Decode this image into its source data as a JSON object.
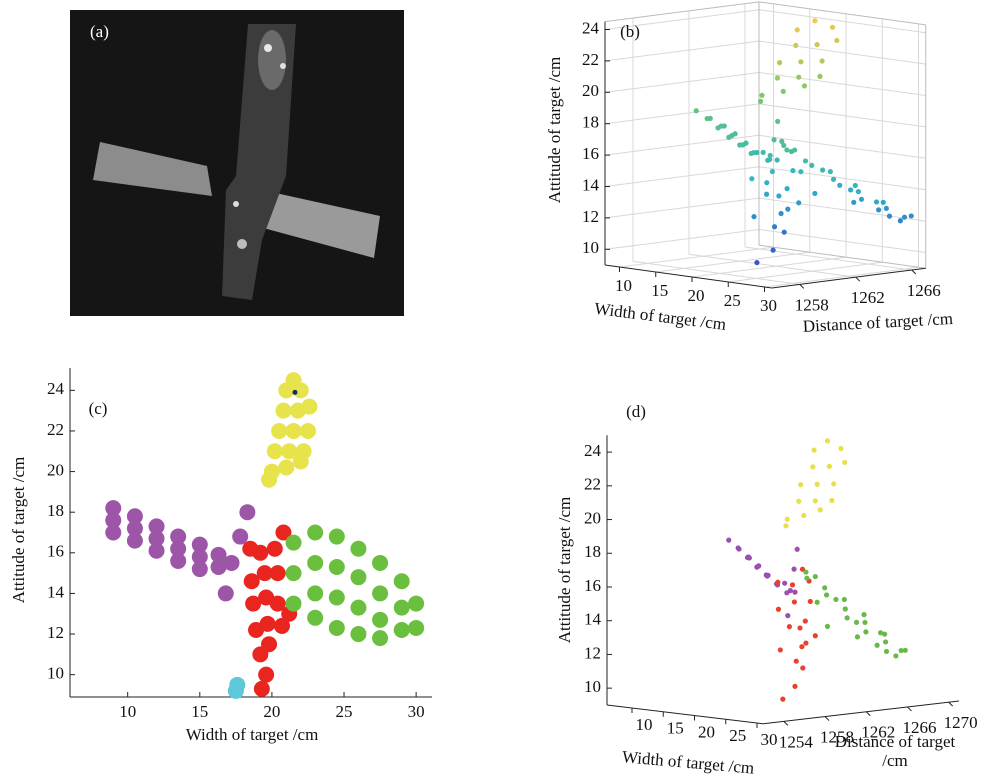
{
  "image": {
    "panel_label": "(a)"
  },
  "chart_data": [
    {
      "type": "scatter3d",
      "panel_label": "(b)",
      "xlabel": "Width of target /cm",
      "zlabel": "Distance of target /cm",
      "ylabel": "Attitude of target /cm",
      "xlim": [
        8,
        31
      ],
      "xticks": [
        10,
        15,
        20,
        25,
        30
      ],
      "zlim": [
        1256,
        1267
      ],
      "zticks": [
        1258,
        1262,
        1266
      ],
      "ylim": [
        9,
        24.5
      ],
      "yticks": [
        10,
        12,
        14,
        16,
        18,
        20,
        22,
        24
      ],
      "grid": true,
      "colormap": [
        "#3a4fc8",
        "#2fb3c8",
        "#6cc96a",
        "#f2c94c"
      ],
      "series": [
        {
          "x": [
            21.5,
            21,
            22,
            20.8,
            21.8,
            22.6,
            20.5,
            21.5,
            22.5,
            20.2,
            21.2,
            22.2,
            20,
            21,
            22,
            19.8
          ],
          "y": [
            24.5,
            24,
            24,
            23,
            23,
            23.2,
            22,
            22,
            22,
            21,
            21,
            21,
            20,
            20.2,
            20.5,
            19.6
          ],
          "z": [
            1264,
            1263,
            1265,
            1263,
            1264,
            1265,
            1262,
            1263,
            1264,
            1262,
            1263,
            1264,
            1261,
            1262,
            1263,
            1261
          ]
        },
        {
          "x": [
            9,
            9,
            9,
            10.5,
            10.5,
            10.5,
            12,
            12,
            12,
            13.5,
            13.5,
            13.5,
            15,
            15,
            15,
            16.3,
            16.3,
            17.2,
            17.8,
            18.3,
            16.8
          ],
          "y": [
            18.2,
            17.6,
            17,
            17.8,
            17.2,
            16.6,
            17.3,
            16.7,
            16.1,
            16.8,
            16.2,
            15.6,
            16.4,
            15.8,
            15.2,
            15.9,
            15.3,
            15.5,
            16.8,
            18,
            14
          ],
          "z": [
            1262,
            1263,
            1264,
            1262,
            1263,
            1264,
            1262,
            1263,
            1264,
            1262,
            1263,
            1264,
            1262,
            1263,
            1264,
            1263,
            1264,
            1263,
            1263,
            1263,
            1263
          ]
        },
        {
          "x": [
            19.3,
            19.6,
            19.2,
            19.8,
            18.9,
            19.7,
            18.7,
            19.6,
            20.4,
            18.6,
            19.5,
            20.4,
            19.2,
            20.2,
            20.8,
            21.2,
            18.5,
            20.7
          ],
          "y": [
            9.3,
            10,
            11,
            11.5,
            12.2,
            12.5,
            13.5,
            13.8,
            13.5,
            14.6,
            15,
            15,
            16,
            16.2,
            17,
            13,
            16.2,
            12.4
          ],
          "z": [
            1261,
            1262,
            1263,
            1262,
            1261,
            1263,
            1262,
            1263,
            1262,
            1261,
            1262,
            1263,
            1262,
            1263,
            1262,
            1263,
            1261,
            1262
          ]
        },
        {
          "x": [
            21.5,
            21.5,
            21.5,
            23,
            23,
            23,
            23,
            24.5,
            24.5,
            24.5,
            24.5,
            26,
            26,
            26,
            26,
            27.5,
            27.5,
            27.5,
            27.5,
            29,
            29,
            29,
            30,
            30
          ],
          "y": [
            16.5,
            15,
            13.5,
            17,
            15.5,
            14,
            12.8,
            16.8,
            15.3,
            13.8,
            12.3,
            16.2,
            14.8,
            13.3,
            12,
            15.5,
            14,
            12.7,
            11.8,
            14.6,
            13.3,
            12.2,
            13.5,
            12.3
          ],
          "z": [
            1262,
            1263,
            1264,
            1261,
            1263,
            1265,
            1266,
            1261,
            1263,
            1265,
            1267,
            1261,
            1263,
            1265,
            1267,
            1262,
            1264,
            1266,
            1267,
            1263,
            1265,
            1267,
            1264,
            1266
          ]
        }
      ]
    },
    {
      "type": "scatter",
      "panel_label": "(c)",
      "xlabel": "Width of target /cm",
      "ylabel": "Attitude of target /cm",
      "xlim": [
        6,
        31.1
      ],
      "xticks": [
        10,
        15,
        20,
        25,
        30
      ],
      "ylim": [
        8.9,
        25.1
      ],
      "yticks": [
        10,
        12,
        14,
        16,
        18,
        20,
        22,
        24
      ],
      "series": [
        {
          "color": "#e6e44a",
          "x": [
            21.5,
            21,
            22,
            20.8,
            21.8,
            22.6,
            20.5,
            21.5,
            22.5,
            20.2,
            21.2,
            22.2,
            20,
            21,
            22,
            19.8
          ],
          "y": [
            24.5,
            24,
            24,
            23,
            23,
            23.2,
            22,
            22,
            22,
            21,
            21,
            21,
            20,
            20.2,
            20.5,
            19.6
          ]
        },
        {
          "color": "#9d55a8",
          "x": [
            9,
            9,
            9,
            10.5,
            10.5,
            10.5,
            12,
            12,
            12,
            13.5,
            13.5,
            13.5,
            15,
            15,
            15,
            16.3,
            16.3,
            17.2,
            17.8,
            18.3,
            16.8
          ],
          "y": [
            18.2,
            17.6,
            17,
            17.8,
            17.2,
            16.6,
            17.3,
            16.7,
            16.1,
            16.8,
            16.2,
            15.6,
            16.4,
            15.8,
            15.2,
            15.9,
            15.3,
            15.5,
            16.8,
            18,
            14
          ]
        },
        {
          "color": "#e8251f",
          "x": [
            19.3,
            19.6,
            19.2,
            19.8,
            18.9,
            19.7,
            18.7,
            19.6,
            20.4,
            18.6,
            19.5,
            20.4,
            19.2,
            20.2,
            20.8,
            21.2,
            18.5,
            20.7
          ],
          "y": [
            9.3,
            10,
            11,
            11.5,
            12.2,
            12.5,
            13.5,
            13.8,
            13.5,
            14.6,
            15,
            15,
            16,
            16.2,
            17,
            13,
            16.2,
            12.4
          ]
        },
        {
          "color": "#6bbf3f",
          "x": [
            21.5,
            21.5,
            21.5,
            23,
            23,
            23,
            23,
            24.5,
            24.5,
            24.5,
            24.5,
            26,
            26,
            26,
            26,
            27.5,
            27.5,
            27.5,
            27.5,
            29,
            29,
            29,
            30,
            30
          ],
          "y": [
            16.5,
            15,
            13.5,
            17,
            15.5,
            14,
            12.8,
            16.8,
            15.3,
            13.8,
            12.3,
            16.2,
            14.8,
            13.3,
            12,
            15.5,
            14,
            12.7,
            11.8,
            14.6,
            13.3,
            12.2,
            13.5,
            12.3
          ]
        },
        {
          "color": "#5ec8d8",
          "x": [
            17.5,
            17.6
          ],
          "y": [
            9.2,
            9.5
          ]
        },
        {
          "color": "#1b2a6b",
          "x": [
            21.6
          ],
          "y": [
            23.9
          ]
        }
      ]
    },
    {
      "type": "scatter3d",
      "panel_label": "(d)",
      "xlabel": "Width of target /cm",
      "zlabel": "Distance of target /cm",
      "ylabel": "Attitude of target /cm",
      "xlim": [
        6,
        31
      ],
      "xticks": [
        10,
        15,
        20,
        25,
        30
      ],
      "zlim": [
        1252,
        1271
      ],
      "zticks": [
        1254,
        1258,
        1262,
        1266,
        1270
      ],
      "ylim": [
        9,
        25
      ],
      "yticks": [
        10,
        12,
        14,
        16,
        18,
        20,
        22,
        24
      ],
      "grid": false,
      "series": [
        {
          "color": "#e8e04a",
          "x": [
            21.5,
            21,
            22,
            20.8,
            21.8,
            22.6,
            20.5,
            21.5,
            22.5,
            20.2,
            21.2,
            22.2,
            20,
            21,
            22,
            19.8
          ],
          "y": [
            24.5,
            24,
            24,
            23,
            23,
            23.2,
            22,
            22,
            22,
            21,
            21,
            21,
            20,
            20.2,
            20.5,
            19.6
          ],
          "z": [
            1264,
            1263,
            1265,
            1263,
            1264,
            1265,
            1262,
            1263,
            1264,
            1262,
            1263,
            1264,
            1261,
            1262,
            1263,
            1261
          ]
        },
        {
          "color": "#9b4fb0",
          "x": [
            9,
            9,
            9,
            10.5,
            10.5,
            10.5,
            12,
            12,
            12,
            13.5,
            13.5,
            13.5,
            15,
            15,
            15,
            16.3,
            16.3,
            17.2,
            17.8,
            18.3,
            16.8
          ],
          "y": [
            18.2,
            17.6,
            17,
            17.8,
            17.2,
            16.6,
            17.3,
            16.7,
            16.1,
            16.8,
            16.2,
            15.6,
            16.4,
            15.8,
            15.2,
            15.9,
            15.3,
            15.5,
            16.8,
            18,
            14
          ],
          "z": [
            1262,
            1263,
            1264,
            1262,
            1263,
            1264,
            1262,
            1263,
            1264,
            1262,
            1263,
            1264,
            1262,
            1263,
            1264,
            1263,
            1264,
            1263,
            1263,
            1263,
            1263
          ]
        },
        {
          "color": "#e8412c",
          "x": [
            19.3,
            19.6,
            19.2,
            19.8,
            18.9,
            19.7,
            18.7,
            19.6,
            20.4,
            18.6,
            19.5,
            20.4,
            19.2,
            20.2,
            20.8,
            21.2,
            18.5,
            20.7
          ],
          "y": [
            9.3,
            10,
            11,
            11.5,
            12.2,
            12.5,
            13.5,
            13.8,
            13.5,
            14.6,
            15,
            15,
            16,
            16.2,
            17,
            13,
            16.2,
            12.4
          ],
          "z": [
            1261,
            1262,
            1263,
            1262,
            1261,
            1263,
            1262,
            1263,
            1262,
            1261,
            1262,
            1263,
            1262,
            1263,
            1262,
            1263,
            1261,
            1262
          ]
        },
        {
          "color": "#6ab84a",
          "x": [
            21.5,
            21.5,
            21.5,
            23,
            23,
            23,
            23,
            24.5,
            24.5,
            24.5,
            24.5,
            26,
            26,
            26,
            26,
            27.5,
            27.5,
            27.5,
            27.5,
            29,
            29,
            29,
            30,
            30
          ],
          "y": [
            16.5,
            15,
            13.5,
            17,
            15.5,
            14,
            12.8,
            16.8,
            15.3,
            13.8,
            12.3,
            16.2,
            14.8,
            13.3,
            12,
            15.5,
            14,
            12.7,
            11.8,
            14.6,
            13.3,
            12.2,
            13.5,
            12.3
          ],
          "z": [
            1262,
            1263,
            1264,
            1261,
            1263,
            1265,
            1266,
            1261,
            1263,
            1265,
            1267,
            1261,
            1263,
            1265,
            1267,
            1262,
            1264,
            1266,
            1267,
            1263,
            1265,
            1267,
            1264,
            1266
          ]
        }
      ]
    }
  ]
}
